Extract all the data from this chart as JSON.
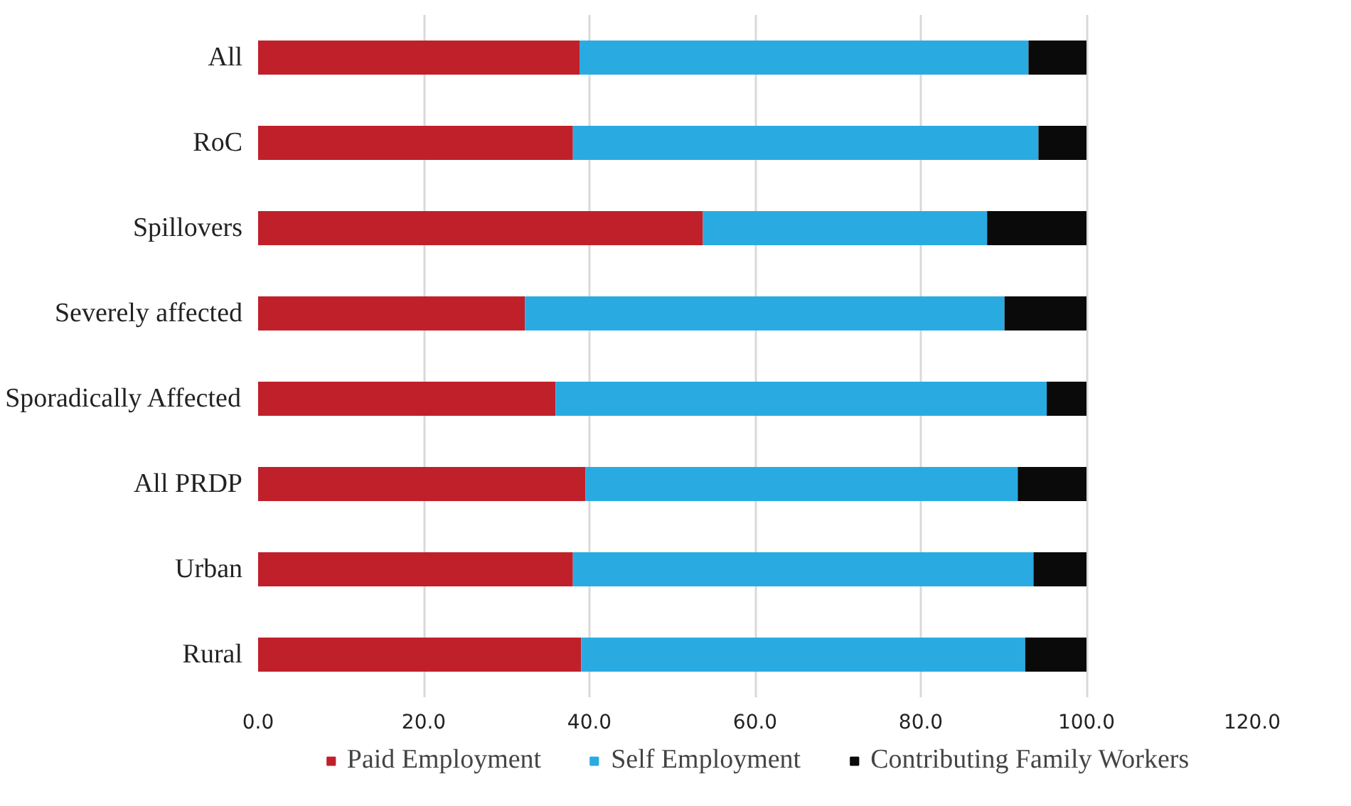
{
  "chart_data": {
    "type": "bar",
    "orientation": "horizontal",
    "stacked": true,
    "categories": [
      "All",
      "RoC",
      "Spillovers",
      "Severely affected",
      "Sporadically Affected",
      "All PRDP",
      "Urban",
      "Rural"
    ],
    "series": [
      {
        "name": "Paid Employment",
        "color": "#c0202a",
        "values": [
          38.8,
          38.0,
          53.7,
          32.2,
          35.9,
          39.5,
          38.0,
          39.0
        ]
      },
      {
        "name": "Self Employment",
        "color": "#29abe2",
        "values": [
          54.2,
          56.2,
          34.3,
          57.9,
          59.3,
          52.2,
          55.6,
          53.6
        ]
      },
      {
        "name": "Contributing Family Workers",
        "color": "#0a0a0a",
        "values": [
          7.0,
          5.8,
          12.0,
          9.9,
          4.8,
          8.3,
          6.4,
          7.4
        ]
      }
    ],
    "xlim": [
      0,
      120
    ],
    "xticks": [
      {
        "value": 0,
        "label": "0.0"
      },
      {
        "value": 20,
        "label": "20.0"
      },
      {
        "value": 40,
        "label": "40.0"
      },
      {
        "value": 60,
        "label": "60.0"
      },
      {
        "value": 80,
        "label": "80.0"
      },
      {
        "value": 100,
        "label": "100.0"
      },
      {
        "value": 120,
        "label": "120.0"
      }
    ],
    "grid": "x",
    "legend": "bottom"
  }
}
